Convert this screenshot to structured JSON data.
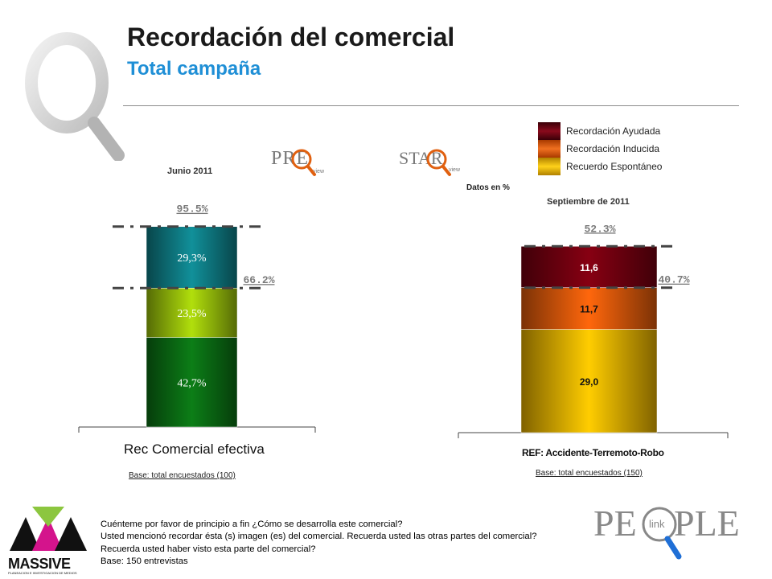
{
  "header": {
    "title": "Recordación del comercial",
    "subtitle": "Total campaña"
  },
  "brands": {
    "preview": "PRE",
    "preview_sub": "view",
    "starview": "STAR",
    "starview_sub": "view",
    "massive": "MASSIVE",
    "massive_sub": "PLANEACION E INVESTIGACION DE MEDIOS",
    "people_left": "PE",
    "people_mid": "link",
    "people_right": "PLE"
  },
  "legend": {
    "items": [
      {
        "label": "Recordación Ayudada",
        "color": "#7a0016"
      },
      {
        "label": "Recordación Inducida",
        "color": "#e85c0d"
      },
      {
        "label": "Recuerdo Espontáneo",
        "color": "#f2c200"
      }
    ],
    "note": "Datos en %"
  },
  "chart_data": [
    {
      "type": "bar",
      "stacked": true,
      "period_label": "Junio 2011",
      "category": "Rec Comercial efectiva",
      "segments": [
        {
          "label": "42,7%",
          "value": 42.7,
          "color": "#0a6e14"
        },
        {
          "label": "23,5%",
          "value": 23.5,
          "color": "#9ac20a"
        },
        {
          "label": "29,3%",
          "value": 29.3,
          "color": "#0f7d86"
        }
      ],
      "totals": [
        {
          "label": "95.5%",
          "value": 95.5
        },
        {
          "label": "66.2%",
          "value": 66.2
        }
      ],
      "base": "Base: total encuestados (100)",
      "ylim": [
        0,
        100
      ]
    },
    {
      "type": "bar",
      "stacked": true,
      "period_label": "Septiembre de 2011",
      "category": "REF: Accidente-Terremoto-Robo",
      "segments": [
        {
          "label": "29,0",
          "value": 29.0,
          "color": "#e8b200"
        },
        {
          "label": "11,7",
          "value": 11.7,
          "color": "#e05a0a"
        },
        {
          "label": "11,6",
          "value": 11.6,
          "color": "#750010"
        }
      ],
      "totals": [
        {
          "label": "52.3%",
          "value": 52.3
        },
        {
          "label": "40.7%",
          "value": 40.7
        }
      ],
      "base": "Base: total encuestados (150)",
      "ylim": [
        0,
        56
      ]
    }
  ],
  "footnote": {
    "lines": [
      "Cuénteme por favor de principio a fin ¿Cómo se desarrolla este comercial?",
      "Usted mencionó recordar ésta (s) imagen (es) del comercial. Recuerda usted las otras partes del comercial?",
      "Recuerda usted haber visto esta parte del comercial?",
      "Base: 150 entrevistas"
    ]
  }
}
